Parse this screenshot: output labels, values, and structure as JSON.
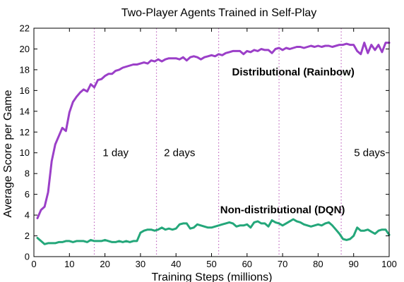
{
  "chart_data": {
    "type": "line",
    "title": "Two-Player Agents Trained in Self-Play",
    "xlabel": "Training Steps (millions)",
    "ylabel": "Average Score per Game",
    "xlim": [
      0,
      100
    ],
    "ylim": [
      0,
      22
    ],
    "xticks": [
      "0",
      "10",
      "20",
      "30",
      "40",
      "50",
      "60",
      "70",
      "80",
      "90",
      "100"
    ],
    "yticks": [
      "0",
      "2",
      "4",
      "6",
      "8",
      "10",
      "12",
      "14",
      "16",
      "18",
      "20",
      "22"
    ],
    "grid": false,
    "markers": [
      {
        "x": 17,
        "label": "1 day",
        "label_x": 23,
        "label_y": 10
      },
      {
        "x": 34.5,
        "label": "2 days",
        "label_x": 41,
        "label_y": 10
      },
      {
        "x": 52,
        "label": "",
        "label_x": null,
        "label_y": null
      },
      {
        "x": 69,
        "label": "",
        "label_x": null,
        "label_y": null
      },
      {
        "x": 86.5,
        "label": "5 days",
        "label_x": 94.5,
        "label_y": 10
      }
    ],
    "series": [
      {
        "name": "Distributional (Rainbow)",
        "color": "#9b3fc8",
        "label_x": 73,
        "label_y": 17.8,
        "x": [
          1,
          2,
          3,
          4,
          5,
          6,
          7,
          8,
          9,
          10,
          11,
          12,
          13,
          14,
          15,
          16,
          17,
          18,
          19,
          20,
          21,
          22,
          23,
          24,
          25,
          26,
          27,
          28,
          29,
          30,
          31,
          32,
          33,
          34,
          35,
          36,
          37,
          38,
          39,
          40,
          41,
          42,
          43,
          44,
          45,
          46,
          47,
          48,
          49,
          50,
          51,
          52,
          53,
          54,
          55,
          56,
          57,
          58,
          59,
          60,
          61,
          62,
          63,
          64,
          65,
          66,
          67,
          68,
          69,
          70,
          71,
          72,
          73,
          74,
          75,
          76,
          77,
          78,
          79,
          80,
          81,
          82,
          83,
          84,
          85,
          86,
          87,
          88,
          89,
          90,
          91,
          92,
          93,
          94,
          95,
          96,
          97,
          98,
          99,
          100
        ],
        "y": [
          3.7,
          4.5,
          4.8,
          6.2,
          9.2,
          10.8,
          11.6,
          12.4,
          12.1,
          13.9,
          14.9,
          15.4,
          15.8,
          16.1,
          15.9,
          16.6,
          16.3,
          17.0,
          17.1,
          17.4,
          17.6,
          17.6,
          17.9,
          18.0,
          18.2,
          18.3,
          18.4,
          18.5,
          18.5,
          18.6,
          18.7,
          18.6,
          18.9,
          18.8,
          19.0,
          18.8,
          19.0,
          19.1,
          19.1,
          19.1,
          19.0,
          19.2,
          18.9,
          19.2,
          19.3,
          19.2,
          19.0,
          19.2,
          19.3,
          19.4,
          19.3,
          19.5,
          19.4,
          19.6,
          19.7,
          19.8,
          19.8,
          19.8,
          19.5,
          19.8,
          19.7,
          19.9,
          19.8,
          20.0,
          19.9,
          19.9,
          19.6,
          20.0,
          20.1,
          19.9,
          20.1,
          20.0,
          20.1,
          20.2,
          20.2,
          20.1,
          20.2,
          20.3,
          20.2,
          20.3,
          20.2,
          20.3,
          20.3,
          20.2,
          20.3,
          20.4,
          20.4,
          20.5,
          20.4,
          20.4,
          19.8,
          19.5,
          20.6,
          19.6,
          20.4,
          19.9,
          20.4,
          19.7,
          20.6,
          20.6
        ]
      },
      {
        "name": "Non-distributional (DQN)",
        "color": "#24a77a",
        "label_x": 70,
        "label_y": 4.5,
        "x": [
          1,
          2,
          3,
          4,
          5,
          6,
          7,
          8,
          9,
          10,
          11,
          12,
          13,
          14,
          15,
          16,
          17,
          18,
          19,
          20,
          21,
          22,
          23,
          24,
          25,
          26,
          27,
          28,
          29,
          30,
          31,
          32,
          33,
          34,
          35,
          36,
          37,
          38,
          39,
          40,
          41,
          42,
          43,
          44,
          45,
          46,
          47,
          48,
          49,
          50,
          51,
          52,
          53,
          54,
          55,
          56,
          57,
          58,
          59,
          60,
          61,
          62,
          63,
          64,
          65,
          66,
          67,
          68,
          69,
          70,
          71,
          72,
          73,
          74,
          75,
          76,
          77,
          78,
          79,
          80,
          81,
          82,
          83,
          84,
          85,
          86,
          87,
          88,
          89,
          90,
          91,
          92,
          93,
          94,
          95,
          96,
          97,
          98,
          99,
          100
        ],
        "y": [
          1.8,
          1.5,
          1.2,
          1.3,
          1.3,
          1.3,
          1.4,
          1.4,
          1.5,
          1.5,
          1.4,
          1.5,
          1.5,
          1.5,
          1.4,
          1.6,
          1.5,
          1.5,
          1.5,
          1.6,
          1.5,
          1.4,
          1.4,
          1.5,
          1.4,
          1.5,
          1.4,
          1.5,
          1.5,
          2.3,
          2.5,
          2.6,
          2.6,
          2.5,
          2.6,
          2.8,
          2.6,
          2.7,
          2.6,
          2.7,
          3.1,
          3.2,
          3.2,
          2.7,
          2.8,
          3.1,
          3.0,
          2.9,
          2.8,
          2.8,
          2.9,
          3.0,
          3.1,
          3.2,
          3.3,
          3.2,
          2.9,
          3.0,
          3.0,
          3.1,
          2.8,
          3.3,
          3.4,
          3.2,
          3.2,
          2.9,
          3.5,
          3.3,
          3.2,
          3.0,
          3.2,
          3.4,
          3.6,
          3.4,
          3.3,
          3.1,
          3.0,
          2.9,
          3.0,
          3.1,
          3.0,
          3.2,
          3.3,
          3.0,
          2.6,
          2.2,
          1.7,
          1.6,
          1.7,
          2.0,
          2.8,
          2.5,
          2.5,
          2.6,
          2.4,
          2.2,
          2.5,
          2.6,
          2.6,
          2.1
        ]
      }
    ]
  }
}
